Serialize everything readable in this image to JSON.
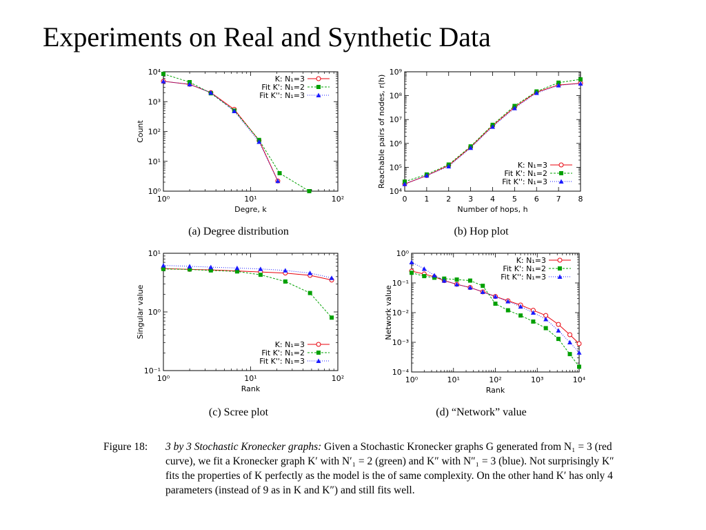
{
  "slide": {
    "title": "Experiments on Real and Synthetic Data"
  },
  "legend_labels": {
    "k": "K: N₁=3",
    "fit2": "Fit K': N₁=2",
    "fit3": "Fit K'': N₁=3"
  },
  "colors": {
    "k": "#e8000b",
    "fit2": "#00a000",
    "fit3": "#1a1aff"
  },
  "chart_data": [
    {
      "id": "a",
      "type": "line",
      "caption": "(a) Degree distribution",
      "xlabel": "Degre, k",
      "ylabel": "Count",
      "xscale": "log",
      "yscale": "log",
      "xlim": [
        1,
        100
      ],
      "ylim": [
        1,
        10000
      ],
      "xticks": [
        {
          "v": 1,
          "l": "10⁰"
        },
        {
          "v": 10,
          "l": "10¹"
        },
        {
          "v": 100,
          "l": "10²"
        }
      ],
      "yticks": [
        {
          "v": 1,
          "l": "10⁰"
        },
        {
          "v": 10,
          "l": "10¹"
        },
        {
          "v": 100,
          "l": "10²"
        },
        {
          "v": 1000,
          "l": "10³"
        },
        {
          "v": 10000,
          "l": "10⁴"
        }
      ],
      "legend": "top-right",
      "series": [
        {
          "key": "k",
          "x": [
            1,
            2,
            3.5,
            6.5,
            12.5,
            20.5
          ],
          "y": [
            4800,
            3800,
            2000,
            550,
            50,
            2.2
          ]
        },
        {
          "key": "fit2",
          "x": [
            1,
            2,
            3.5,
            6.5,
            12.5,
            21.5,
            47
          ],
          "y": [
            8500,
            4500,
            1900,
            500,
            52,
            4,
            1
          ]
        },
        {
          "key": "fit3",
          "x": [
            1,
            2,
            3.5,
            6.5,
            12.5,
            20.5
          ],
          "y": [
            4800,
            3800,
            2000,
            480,
            45,
            2.2
          ]
        }
      ]
    },
    {
      "id": "b",
      "type": "line",
      "caption": "(b) Hop plot",
      "xlabel": "Number of hops, h",
      "ylabel": "Reachable pairs of nodes, r(h)",
      "xscale": "linear",
      "yscale": "log",
      "xlim": [
        0,
        8
      ],
      "ylim": [
        10000,
        1000000000
      ],
      "xticks": [
        {
          "v": 0,
          "l": "0"
        },
        {
          "v": 1,
          "l": "1"
        },
        {
          "v": 2,
          "l": "2"
        },
        {
          "v": 3,
          "l": "3"
        },
        {
          "v": 4,
          "l": "4"
        },
        {
          "v": 5,
          "l": "5"
        },
        {
          "v": 6,
          "l": "6"
        },
        {
          "v": 7,
          "l": "7"
        },
        {
          "v": 8,
          "l": "8"
        }
      ],
      "yticks": [
        {
          "v": 10000,
          "l": "10⁴"
        },
        {
          "v": 100000,
          "l": "10⁵"
        },
        {
          "v": 1000000,
          "l": "10⁶"
        },
        {
          "v": 10000000,
          "l": "10⁷"
        },
        {
          "v": 100000000,
          "l": "10⁸"
        },
        {
          "v": 1000000000,
          "l": "10⁹"
        }
      ],
      "legend": "bottom-right",
      "series": [
        {
          "key": "k",
          "x": [
            0,
            1,
            2,
            3,
            4,
            5,
            6,
            7,
            8
          ],
          "y": [
            20000,
            45000,
            120000,
            700000,
            5500000,
            33000000,
            140000000,
            280000000,
            330000000
          ]
        },
        {
          "key": "fit2",
          "x": [
            0,
            1,
            2,
            3,
            4,
            5,
            6,
            7,
            8
          ],
          "y": [
            25000,
            50000,
            130000,
            750000,
            6000000,
            37000000,
            150000000,
            350000000,
            480000000
          ]
        },
        {
          "key": "fit3",
          "x": [
            0,
            1,
            2,
            3,
            4,
            5,
            6,
            7,
            8
          ],
          "y": [
            20000,
            45000,
            110000,
            650000,
            5000000,
            30000000,
            130000000,
            270000000,
            320000000
          ]
        }
      ]
    },
    {
      "id": "c",
      "type": "line",
      "caption": "(c) Scree plot",
      "xlabel": "Rank",
      "ylabel": "Singular value",
      "xscale": "log",
      "yscale": "log",
      "xlim": [
        1,
        100
      ],
      "ylim": [
        0.1,
        10
      ],
      "xticks": [
        {
          "v": 1,
          "l": "10⁰"
        },
        {
          "v": 10,
          "l": "10¹"
        },
        {
          "v": 100,
          "l": "10²"
        }
      ],
      "yticks": [
        {
          "v": 0.1,
          "l": "10⁻¹"
        },
        {
          "v": 1,
          "l": "10⁰"
        },
        {
          "v": 10,
          "l": "10¹"
        }
      ],
      "legend": "bottom-right",
      "series": [
        {
          "key": "k",
          "x": [
            1,
            2,
            3.5,
            7,
            13,
            25,
            48,
            85
          ],
          "y": [
            5.5,
            5.3,
            5.2,
            5.0,
            4.8,
            4.6,
            4.2,
            3.5
          ]
        },
        {
          "key": "fit2",
          "x": [
            1,
            2,
            3.5,
            7,
            13,
            25,
            48,
            85
          ],
          "y": [
            5.4,
            5.3,
            5.1,
            4.9,
            4.3,
            3.3,
            2.1,
            0.8
          ]
        },
        {
          "key": "fit3",
          "x": [
            1,
            2,
            3.5,
            7,
            13,
            25,
            48,
            85
          ],
          "y": [
            6.2,
            6.0,
            5.8,
            5.6,
            5.4,
            5.1,
            4.6,
            3.8
          ]
        }
      ]
    },
    {
      "id": "d",
      "type": "line",
      "caption": "(d) “Network” value",
      "xlabel": "Rank",
      "ylabel": "Network value",
      "xscale": "log",
      "yscale": "log",
      "xlim": [
        1,
        10000
      ],
      "ylim": [
        0.0001,
        1
      ],
      "xticks": [
        {
          "v": 1,
          "l": "10⁰"
        },
        {
          "v": 10,
          "l": "10¹"
        },
        {
          "v": 100,
          "l": "10²"
        },
        {
          "v": 1000,
          "l": "10³"
        },
        {
          "v": 10000,
          "l": "10⁴"
        }
      ],
      "yticks": [
        {
          "v": 0.0001,
          "l": "10⁻⁴"
        },
        {
          "v": 0.001,
          "l": "10⁻³"
        },
        {
          "v": 0.01,
          "l": "10⁻²"
        },
        {
          "v": 0.1,
          "l": "10⁻¹"
        },
        {
          "v": 1,
          "l": "10⁰"
        }
      ],
      "legend": "top-right",
      "series": [
        {
          "key": "k",
          "x": [
            1,
            2,
            3.5,
            6,
            12,
            25,
            50,
            100,
            200,
            400,
            800,
            1600,
            3200,
            6000,
            10000
          ],
          "y": [
            0.25,
            0.2,
            0.16,
            0.12,
            0.09,
            0.07,
            0.05,
            0.035,
            0.025,
            0.018,
            0.012,
            0.008,
            0.004,
            0.0018,
            0.0009
          ]
        },
        {
          "key": "fit2",
          "x": [
            1,
            2,
            3.5,
            6,
            12,
            25,
            50,
            100,
            200,
            400,
            800,
            1600,
            3200,
            6000,
            10000
          ],
          "y": [
            0.22,
            0.17,
            0.15,
            0.14,
            0.13,
            0.12,
            0.08,
            0.02,
            0.012,
            0.008,
            0.005,
            0.003,
            0.0013,
            0.0004,
            0.00015
          ]
        },
        {
          "key": "fit3",
          "x": [
            1,
            2,
            3.5,
            6,
            12,
            25,
            50,
            100,
            200,
            400,
            800,
            1600,
            3200,
            6000,
            10000
          ],
          "y": [
            0.5,
            0.3,
            0.18,
            0.12,
            0.09,
            0.07,
            0.05,
            0.035,
            0.024,
            0.016,
            0.01,
            0.006,
            0.0025,
            0.001,
            0.00045
          ]
        }
      ]
    }
  ],
  "figure_caption": {
    "label": "Figure 18:",
    "emph": "3 by 3 Stochastic Kronecker graphs:",
    "text": " Given a Stochastic Kronecker graphs G generated from N₁ = 3 (red curve), we fit a Kronecker graph K′ with N′₁ = 2 (green) and K″ with N″₁ = 3 (blue). Not surprisingly K″ fits the properties of K perfectly as the model is the of same complexity. On the other hand K′ has only 4 parameters (instead of 9 as in K and K″) and still fits well."
  }
}
